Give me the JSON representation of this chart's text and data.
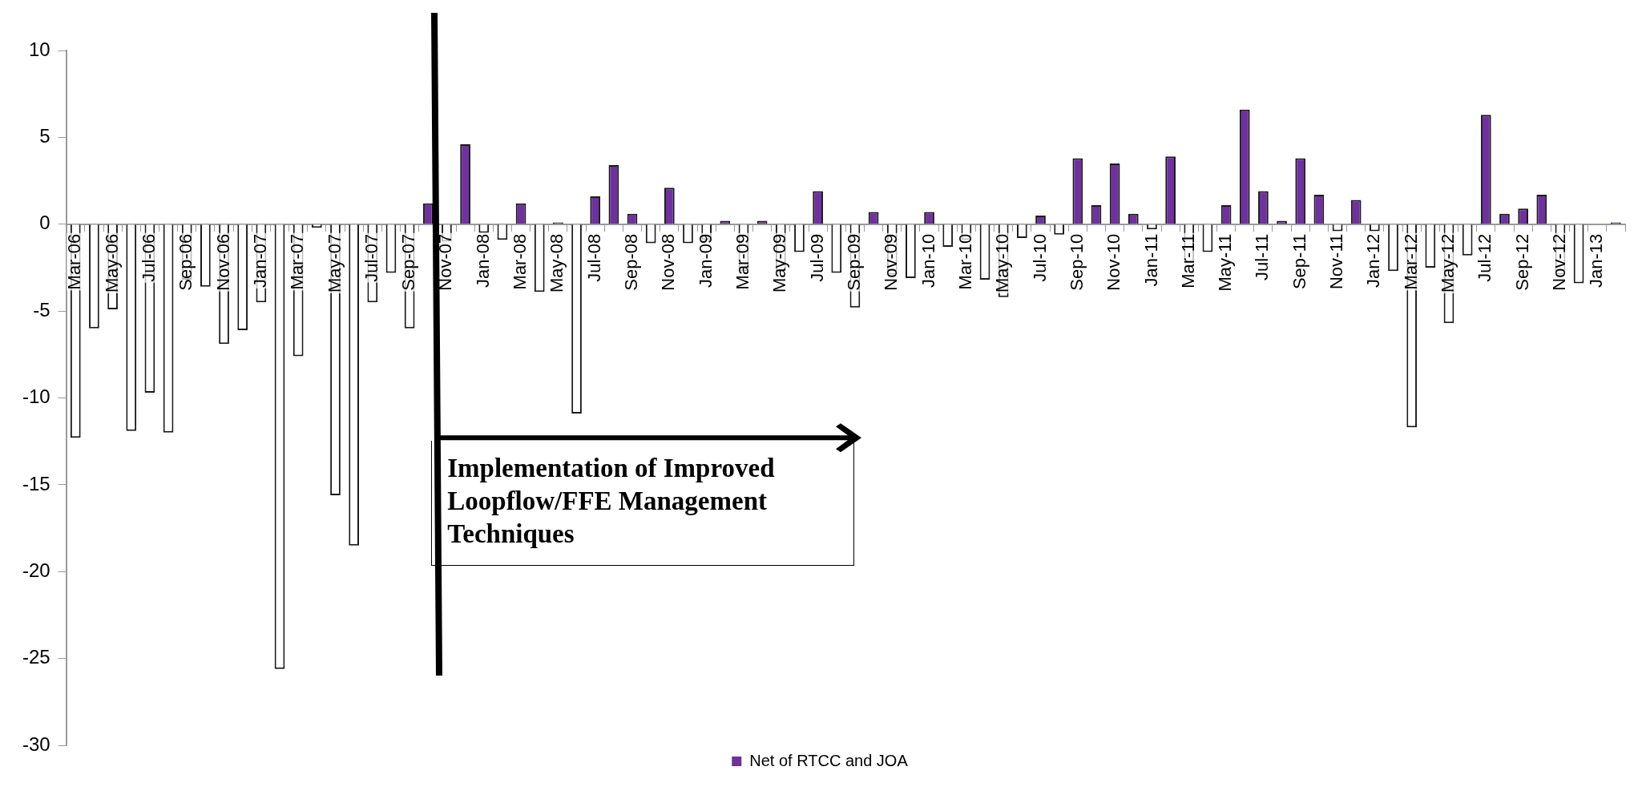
{
  "chart_data": {
    "type": "bar",
    "categories": [
      "Mar-06",
      null,
      "May-06",
      null,
      "Jul-06",
      null,
      "Sep-06",
      null,
      "Nov-06",
      null,
      "Jan-07",
      null,
      "Mar-07",
      null,
      "May-07",
      null,
      "Jul-07",
      null,
      "Sep-07",
      null,
      "Nov-07",
      null,
      "Jan-08",
      null,
      "Mar-08",
      null,
      "May-08",
      null,
      "Jul-08",
      null,
      "Sep-08",
      null,
      "Nov-08",
      null,
      "Jan-09",
      null,
      "Mar-09",
      null,
      "May-09",
      null,
      "Jul-09",
      null,
      "Sep-09",
      null,
      "Nov-09",
      null,
      "Jan-10",
      null,
      "Mar-10",
      null,
      "May-10",
      null,
      "Jul-10",
      null,
      "Sep-10",
      null,
      "Nov-10",
      null,
      "Jan-11",
      null,
      "Mar-11",
      null,
      "May-11",
      null,
      "Jul-11",
      null,
      "Sep-11",
      null,
      "Nov-11",
      null,
      "Jan-12",
      null,
      "Mar-12",
      null,
      "May-12",
      null,
      "Jul-12",
      null,
      "Sep-12",
      null,
      "Nov-12",
      null,
      "Jan-13",
      null
    ],
    "series": [
      {
        "name": "Net of RTCC and JOA",
        "color": "#7030a0",
        "values": [
          -12.3,
          -6.0,
          -4.9,
          -11.9,
          -9.7,
          -12.0,
          -3.2,
          -3.6,
          -6.9,
          -6.1,
          -4.5,
          -25.6,
          -7.6,
          -0.2,
          -15.6,
          -18.5,
          -4.5,
          -2.8,
          -6.0,
          1.2,
          -1.0,
          4.6,
          -0.5,
          -0.9,
          1.2,
          -3.9,
          0.1,
          -10.9,
          1.6,
          3.4,
          0.6,
          -1.1,
          2.1,
          -1.1,
          -0.9,
          0.2,
          -2.7,
          0.2,
          -2.7,
          -1.6,
          1.9,
          -2.8,
          -4.8,
          0.7,
          -2.9,
          -3.1,
          0.7,
          -1.3,
          -0.9,
          -3.2,
          -4.2,
          -0.8,
          0.5,
          -0.6,
          3.8,
          1.1,
          3.5,
          0.6,
          -0.3,
          3.9,
          -2.2,
          -1.6,
          1.1,
          6.6,
          1.9,
          0.2,
          3.8,
          1.7,
          -0.4,
          1.4,
          -0.4,
          -2.7,
          -11.7,
          -2.5,
          -5.7,
          -1.8,
          6.3,
          0.6,
          0.9,
          1.7,
          -2.9,
          -3.4,
          null,
          0.1
        ],
        "colors": [
          "#ffffff",
          "#ffffff",
          "#ffffff",
          "#ffffff",
          "#ffffff",
          "#ffffff",
          "#ffffff",
          "#ffffff",
          "#ffffff",
          "#ffffff",
          "#ffffff",
          "#ffffff",
          "#ffffff",
          "#ffffff",
          "#ffffff",
          "#ffffff",
          "#ffffff",
          "#ffffff",
          "#ffffff",
          "#7030a0",
          "#ffffff",
          "#7030a0",
          "#ffffff",
          "#ffffff",
          "#7030a0",
          "#ffffff",
          "#7030a0",
          "#ffffff",
          "#7030a0",
          "#7030a0",
          "#7030a0",
          "#ffffff",
          "#7030a0",
          "#ffffff",
          "#ffffff",
          "#7030a0",
          "#ffffff",
          "#7030a0",
          "#ffffff",
          "#ffffff",
          "#7030a0",
          "#ffffff",
          "#ffffff",
          "#7030a0",
          "#ffffff",
          "#ffffff",
          "#7030a0",
          "#ffffff",
          "#ffffff",
          "#ffffff",
          "#ffffff",
          "#ffffff",
          "#7030a0",
          "#ffffff",
          "#7030a0",
          "#7030a0",
          "#7030a0",
          "#7030a0",
          "#ffffff",
          "#7030a0",
          "#ffffff",
          "#ffffff",
          "#7030a0",
          "#7030a0",
          "#7030a0",
          "#7030a0",
          "#7030a0",
          "#7030a0",
          "#ffffff",
          "#7030a0",
          "#ffffff",
          "#ffffff",
          "#ffffff",
          "#ffffff",
          "#ffffff",
          "#ffffff",
          "#7030a0",
          "#7030a0",
          "#7030a0",
          "#7030a0",
          "#ffffff",
          "#ffffff",
          "#ffffff",
          "#7030a0"
        ]
      }
    ],
    "ylim": [
      -30,
      10
    ],
    "yticks": [
      -30,
      -25,
      -20,
      -15,
      -10,
      -5,
      0,
      5,
      10
    ],
    "grid": false,
    "legend": "bottom",
    "annotations": [
      "Implementation of Improved Loopflow/FFE Management Techniques"
    ]
  }
}
